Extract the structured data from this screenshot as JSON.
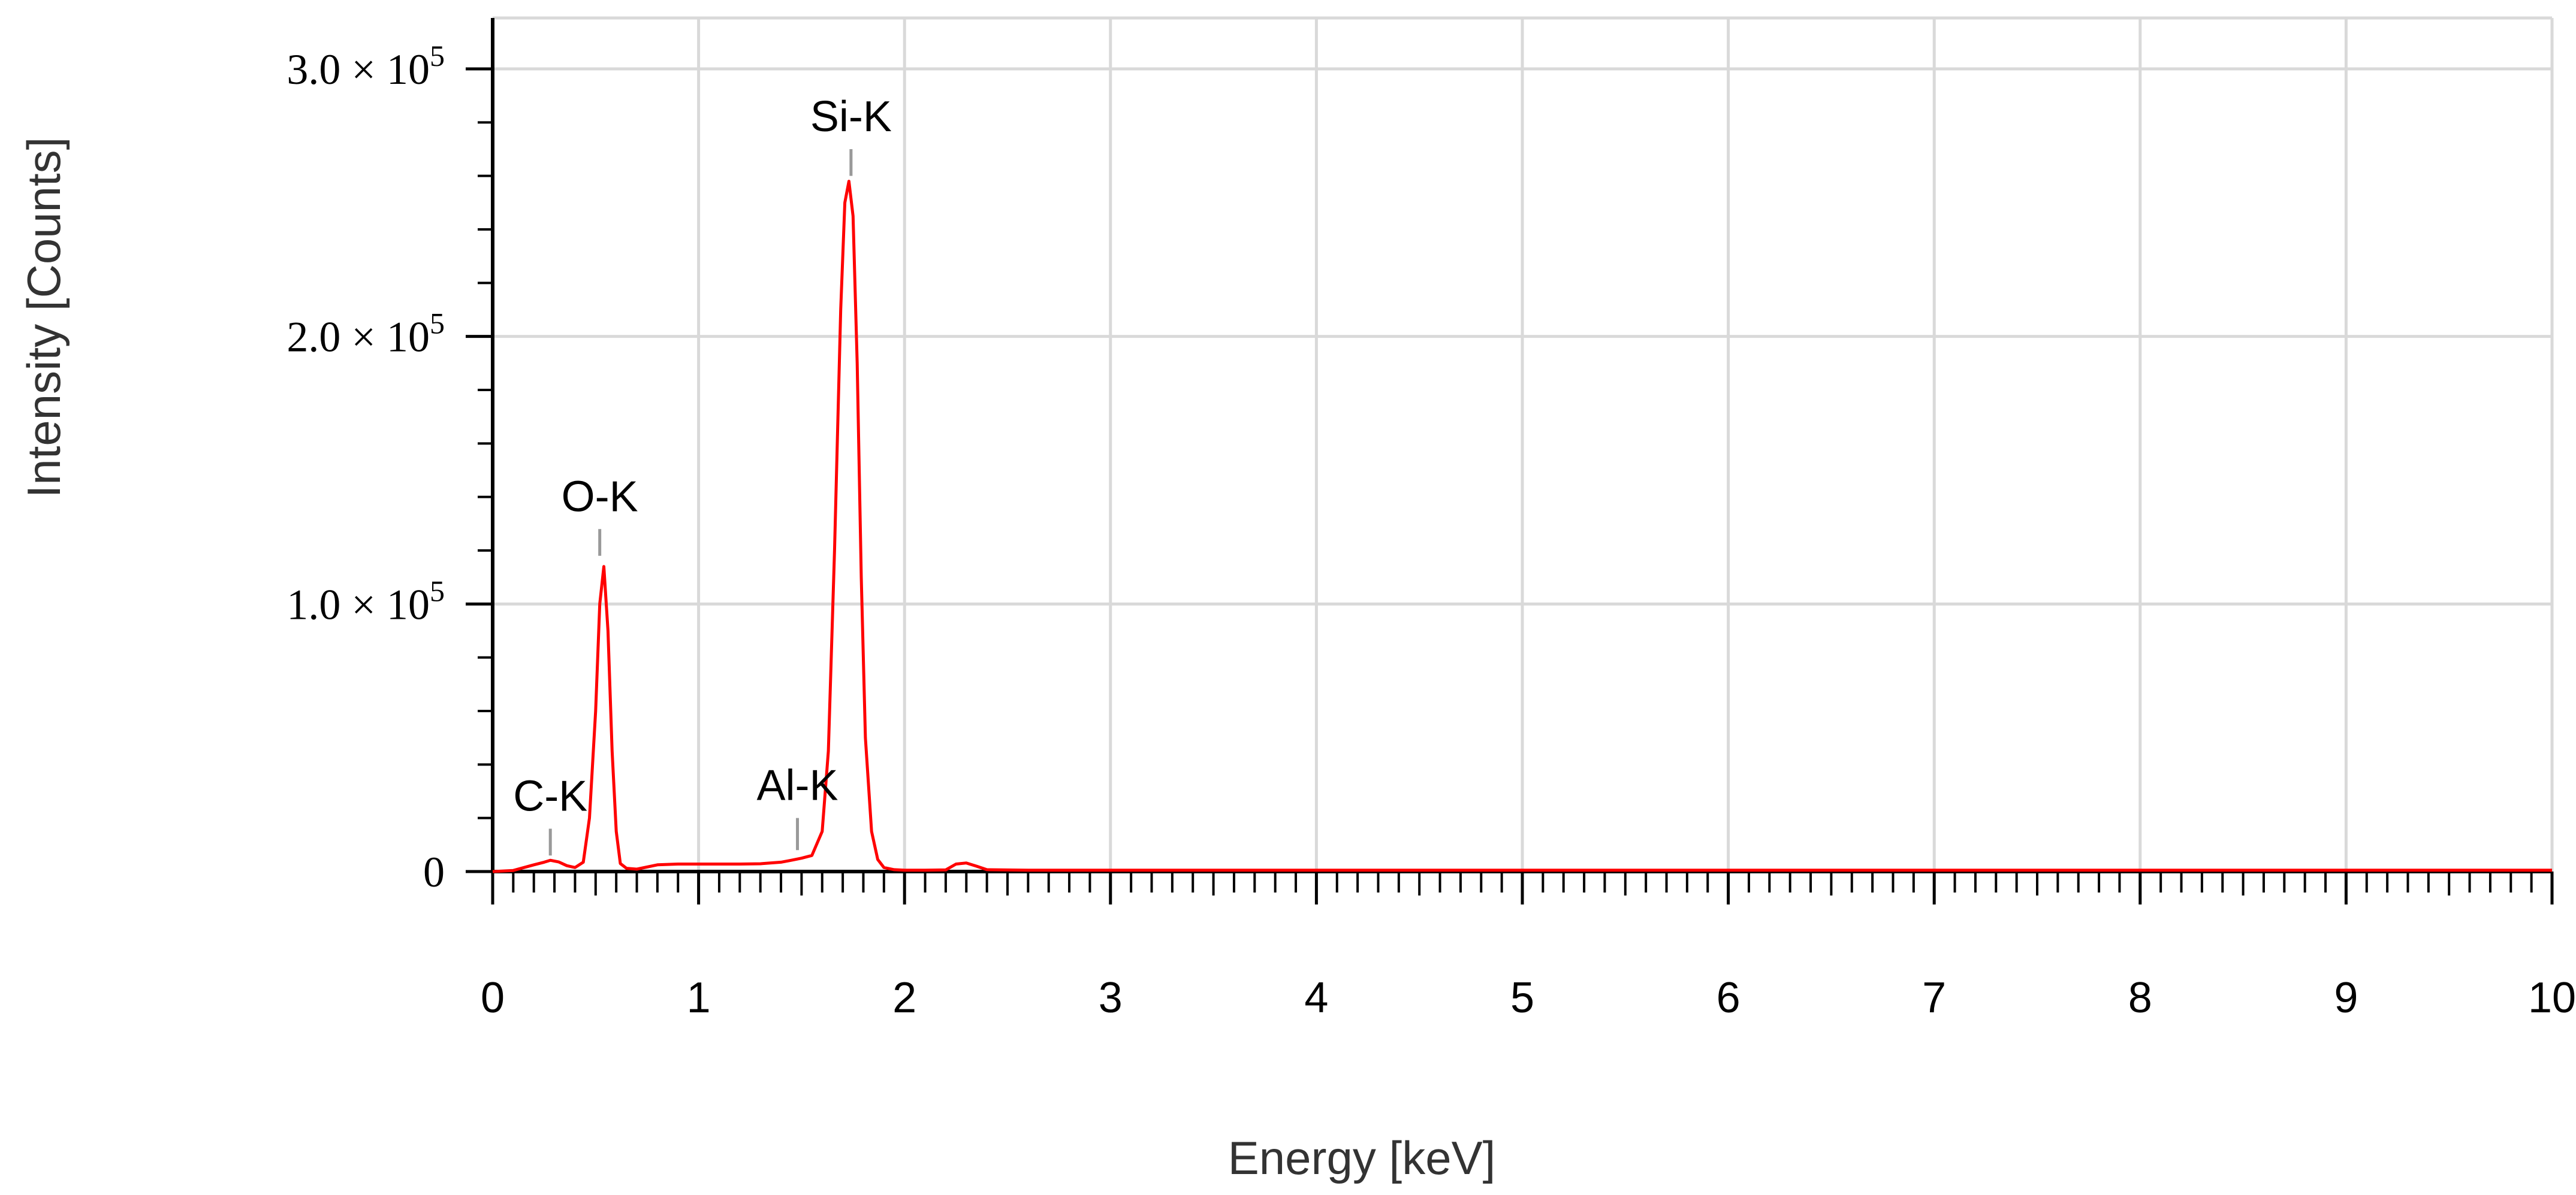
{
  "chart_data": {
    "type": "line",
    "xlabel": "Energy [keV]",
    "ylabel": "Intensity [Counts]",
    "xlim": [
      0,
      10
    ],
    "ylim": [
      0,
      300000
    ],
    "x_ticks": [
      0,
      1,
      2,
      3,
      4,
      5,
      6,
      7,
      8,
      9,
      10
    ],
    "x_tick_labels": [
      "0",
      "1",
      "2",
      "3",
      "4",
      "5",
      "6",
      "7",
      "8",
      "9",
      "10"
    ],
    "y_ticks": [
      0,
      100000,
      200000,
      300000
    ],
    "y_tick_labels": [
      {
        "text": "0",
        "mantissa": "",
        "sup": ""
      },
      {
        "text": "",
        "mantissa": "1.0 × 10",
        "sup": "5"
      },
      {
        "text": "",
        "mantissa": "2.0 × 10",
        "sup": "5"
      },
      {
        "text": "",
        "mantissa": "3.0 × 10",
        "sup": "5"
      }
    ],
    "grid": true,
    "series": [
      {
        "color": "#ff0000",
        "x": [
          0.0,
          0.1,
          0.2,
          0.25,
          0.28,
          0.32,
          0.36,
          0.4,
          0.44,
          0.47,
          0.5,
          0.52,
          0.54,
          0.56,
          0.58,
          0.6,
          0.62,
          0.65,
          0.7,
          0.8,
          0.9,
          1.0,
          1.1,
          1.2,
          1.3,
          1.4,
          1.45,
          1.5,
          1.55,
          1.6,
          1.63,
          1.66,
          1.69,
          1.71,
          1.73,
          1.75,
          1.77,
          1.79,
          1.81,
          1.84,
          1.87,
          1.9,
          1.95,
          2.0,
          2.1,
          2.2,
          2.25,
          2.3,
          2.35,
          2.4,
          2.6,
          3.0,
          3.5,
          4.0,
          5.0,
          6.0,
          7.0,
          8.0,
          9.0,
          10.0
        ],
        "y": [
          0,
          400,
          2500,
          3500,
          4200,
          3600,
          2200,
          1500,
          3500,
          20000,
          60000,
          100000,
          114000,
          90000,
          45000,
          15000,
          3000,
          1200,
          900,
          2500,
          2800,
          2800,
          2800,
          2800,
          2900,
          3500,
          4200,
          5000,
          6000,
          15000,
          45000,
          120000,
          210000,
          250000,
          258000,
          245000,
          190000,
          110000,
          50000,
          15000,
          4500,
          1500,
          700,
          500,
          500,
          600,
          2800,
          3200,
          2000,
          700,
          500,
          500,
          500,
          500,
          500,
          500,
          500,
          500,
          500,
          500
        ]
      }
    ],
    "peak_labels": [
      {
        "text": "C-K",
        "x": 0.28,
        "marker_top": 16000,
        "marker_bottom": 6000
      },
      {
        "text": "O-K",
        "x": 0.52,
        "marker_top": 128000,
        "marker_bottom": 118000
      },
      {
        "text": "Al-K",
        "x": 1.48,
        "marker_top": 20000,
        "marker_bottom": 8000
      },
      {
        "text": "Si-K",
        "x": 1.74,
        "marker_top": 270000,
        "marker_bottom": 260000
      }
    ]
  }
}
